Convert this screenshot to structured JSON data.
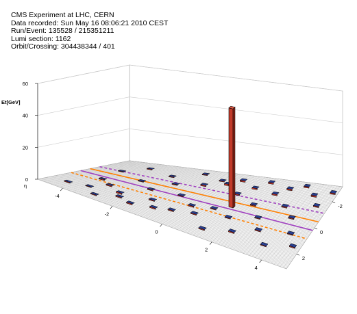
{
  "header": {
    "lines": [
      "CMS Experiment at LHC, CERN",
      "Data recorded: Sun May 16 08:06:21 2010 CEST",
      "Run/Event: 135528 / 215351211",
      "Lumi section: 1162",
      "Orbit/Crossing: 304438344 / 401"
    ]
  },
  "chart_data": {
    "type": "lego",
    "title": "",
    "zlabel": "Et[GeV]",
    "xlabel": "η",
    "ylabel": "",
    "x_ticks": [
      -4,
      -2,
      0,
      2,
      4
    ],
    "y_ticks": [
      -2,
      0,
      2
    ],
    "z_ticks": [
      0,
      20,
      40,
      60
    ],
    "eta_range": [
      -5,
      5
    ],
    "phi_range": [
      -3.14,
      3.14
    ],
    "z_range": [
      0,
      60
    ],
    "tall_tower": {
      "eta": 1.4,
      "phi": -0.05,
      "et": 62
    },
    "deposits": [
      {
        "eta": -4.3,
        "phi": 2.2,
        "et": 0.5
      },
      {
        "eta": -4.0,
        "phi": -1.1,
        "et": 0.4
      },
      {
        "eta": -3.8,
        "phi": 0.6,
        "et": 0.6
      },
      {
        "eta": -3.6,
        "phi": 1.9,
        "et": 0.4
      },
      {
        "eta": -3.4,
        "phi": -2.2,
        "et": 0.5
      },
      {
        "eta": -3.2,
        "phi": 1.1,
        "et": 0.7
      },
      {
        "eta": -3.0,
        "phi": 2.6,
        "et": 0.5
      },
      {
        "eta": -2.7,
        "phi": -0.4,
        "et": 0.4
      },
      {
        "eta": -2.5,
        "phi": 1.6,
        "et": 0.8
      },
      {
        "eta": -2.3,
        "phi": 2.0,
        "et": 0.6
      },
      {
        "eta": -2.1,
        "phi": -1.7,
        "et": 0.5
      },
      {
        "eta": -1.9,
        "phi": 0.3,
        "et": 0.6
      },
      {
        "eta": -1.7,
        "phi": 2.3,
        "et": 0.7
      },
      {
        "eta": -1.5,
        "phi": -0.9,
        "et": 0.5
      },
      {
        "eta": -1.3,
        "phi": 1.3,
        "et": 0.6
      },
      {
        "eta": -1.1,
        "phi": -2.6,
        "et": 0.5
      },
      {
        "eta": -0.9,
        "phi": 2.0,
        "et": 0.7
      },
      {
        "eta": -0.7,
        "phi": 0.1,
        "et": 0.5
      },
      {
        "eta": -0.5,
        "phi": -1.4,
        "et": 0.8
      },
      {
        "eta": -0.3,
        "phi": 1.7,
        "et": 0.6
      },
      {
        "eta": -0.1,
        "phi": -2.2,
        "et": 0.5
      },
      {
        "eta": 0.1,
        "phi": 0.8,
        "et": 0.7
      },
      {
        "eta": 0.3,
        "phi": -1.9,
        "et": 1.0
      },
      {
        "eta": 0.5,
        "phi": 1.4,
        "et": 0.6
      },
      {
        "eta": 0.7,
        "phi": -2.5,
        "et": 0.9
      },
      {
        "eta": 0.9,
        "phi": 0.5,
        "et": 0.5
      },
      {
        "eta": 1.1,
        "phi": -1.2,
        "et": 0.7
      },
      {
        "eta": 1.3,
        "phi": 2.4,
        "et": 0.6
      },
      {
        "eta": 1.5,
        "phi": -2.0,
        "et": 0.8
      },
      {
        "eta": 1.7,
        "phi": 0.9,
        "et": 0.5
      },
      {
        "eta": 1.9,
        "phi": -2.7,
        "et": 0.9
      },
      {
        "eta": 2.1,
        "phi": -0.6,
        "et": 0.6
      },
      {
        "eta": 2.3,
        "phi": 1.9,
        "et": 0.7
      },
      {
        "eta": 2.5,
        "phi": -1.8,
        "et": 0.8
      },
      {
        "eta": 2.7,
        "phi": 0.3,
        "et": 0.5
      },
      {
        "eta": 2.9,
        "phi": -2.4,
        "et": 0.9
      },
      {
        "eta": 3.1,
        "phi": 1.2,
        "et": 0.6
      },
      {
        "eta": 3.3,
        "phi": -1.0,
        "et": 0.7
      },
      {
        "eta": 3.5,
        "phi": -2.8,
        "et": 0.8
      },
      {
        "eta": 3.7,
        "phi": 2.1,
        "et": 0.5
      },
      {
        "eta": 3.9,
        "phi": -0.3,
        "et": 0.6
      },
      {
        "eta": 4.1,
        "phi": -2.2,
        "et": 0.9
      },
      {
        "eta": 4.3,
        "phi": 0.8,
        "et": 0.5
      },
      {
        "eta": 4.5,
        "phi": -1.5,
        "et": 0.7
      },
      {
        "eta": 4.7,
        "phi": 1.6,
        "et": 0.6
      },
      {
        "eta": 4.8,
        "phi": -2.6,
        "et": 0.8
      }
    ],
    "lines": [
      {
        "eta0": -5,
        "phi0": 0.85,
        "eta1": 5,
        "phi1": 0.85,
        "style": "dashed",
        "color": "#ff7f00"
      },
      {
        "eta0": -5,
        "phi0": -0.45,
        "eta1": 5,
        "phi1": -0.45,
        "style": "solid",
        "color": "#ff7f00"
      },
      {
        "eta0": -5,
        "phi0": 0.2,
        "eta1": 5,
        "phi1": 0.2,
        "style": "solid",
        "color": "#a040c0"
      },
      {
        "eta0": -5,
        "phi0": -1.1,
        "eta1": 5,
        "phi1": -1.1,
        "style": "dashed",
        "color": "#a040c0"
      }
    ]
  }
}
